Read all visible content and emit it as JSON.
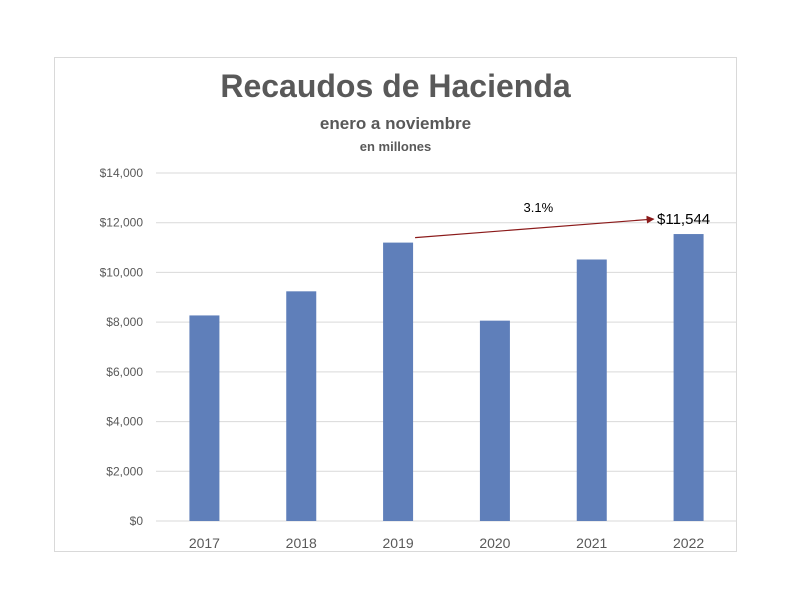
{
  "chart_data": {
    "type": "bar",
    "title": "Recaudos de Hacienda",
    "subtitle": "enero a noviembre",
    "subtitle2": "en millones",
    "categories": [
      "2017",
      "2018",
      "2019",
      "2020",
      "2021",
      "2022"
    ],
    "values": [
      8270,
      9240,
      11200,
      8060,
      10520,
      11544
    ],
    "ylim": [
      0,
      14000
    ],
    "yticks": [
      0,
      2000,
      4000,
      6000,
      8000,
      10000,
      12000,
      14000
    ],
    "ytick_labels": [
      "$0",
      "$2,000",
      "$4,000",
      "$6,000",
      "$8,000",
      "$10,000",
      "$12,000",
      "$14,000"
    ],
    "grid": true,
    "bar_color": "#5f7fba",
    "annotations": {
      "growth_label": "3.1%",
      "value_label": "$11,544",
      "arrow_from": "2019",
      "arrow_to": "2022",
      "arrow_color": "#8b1a1a"
    }
  }
}
